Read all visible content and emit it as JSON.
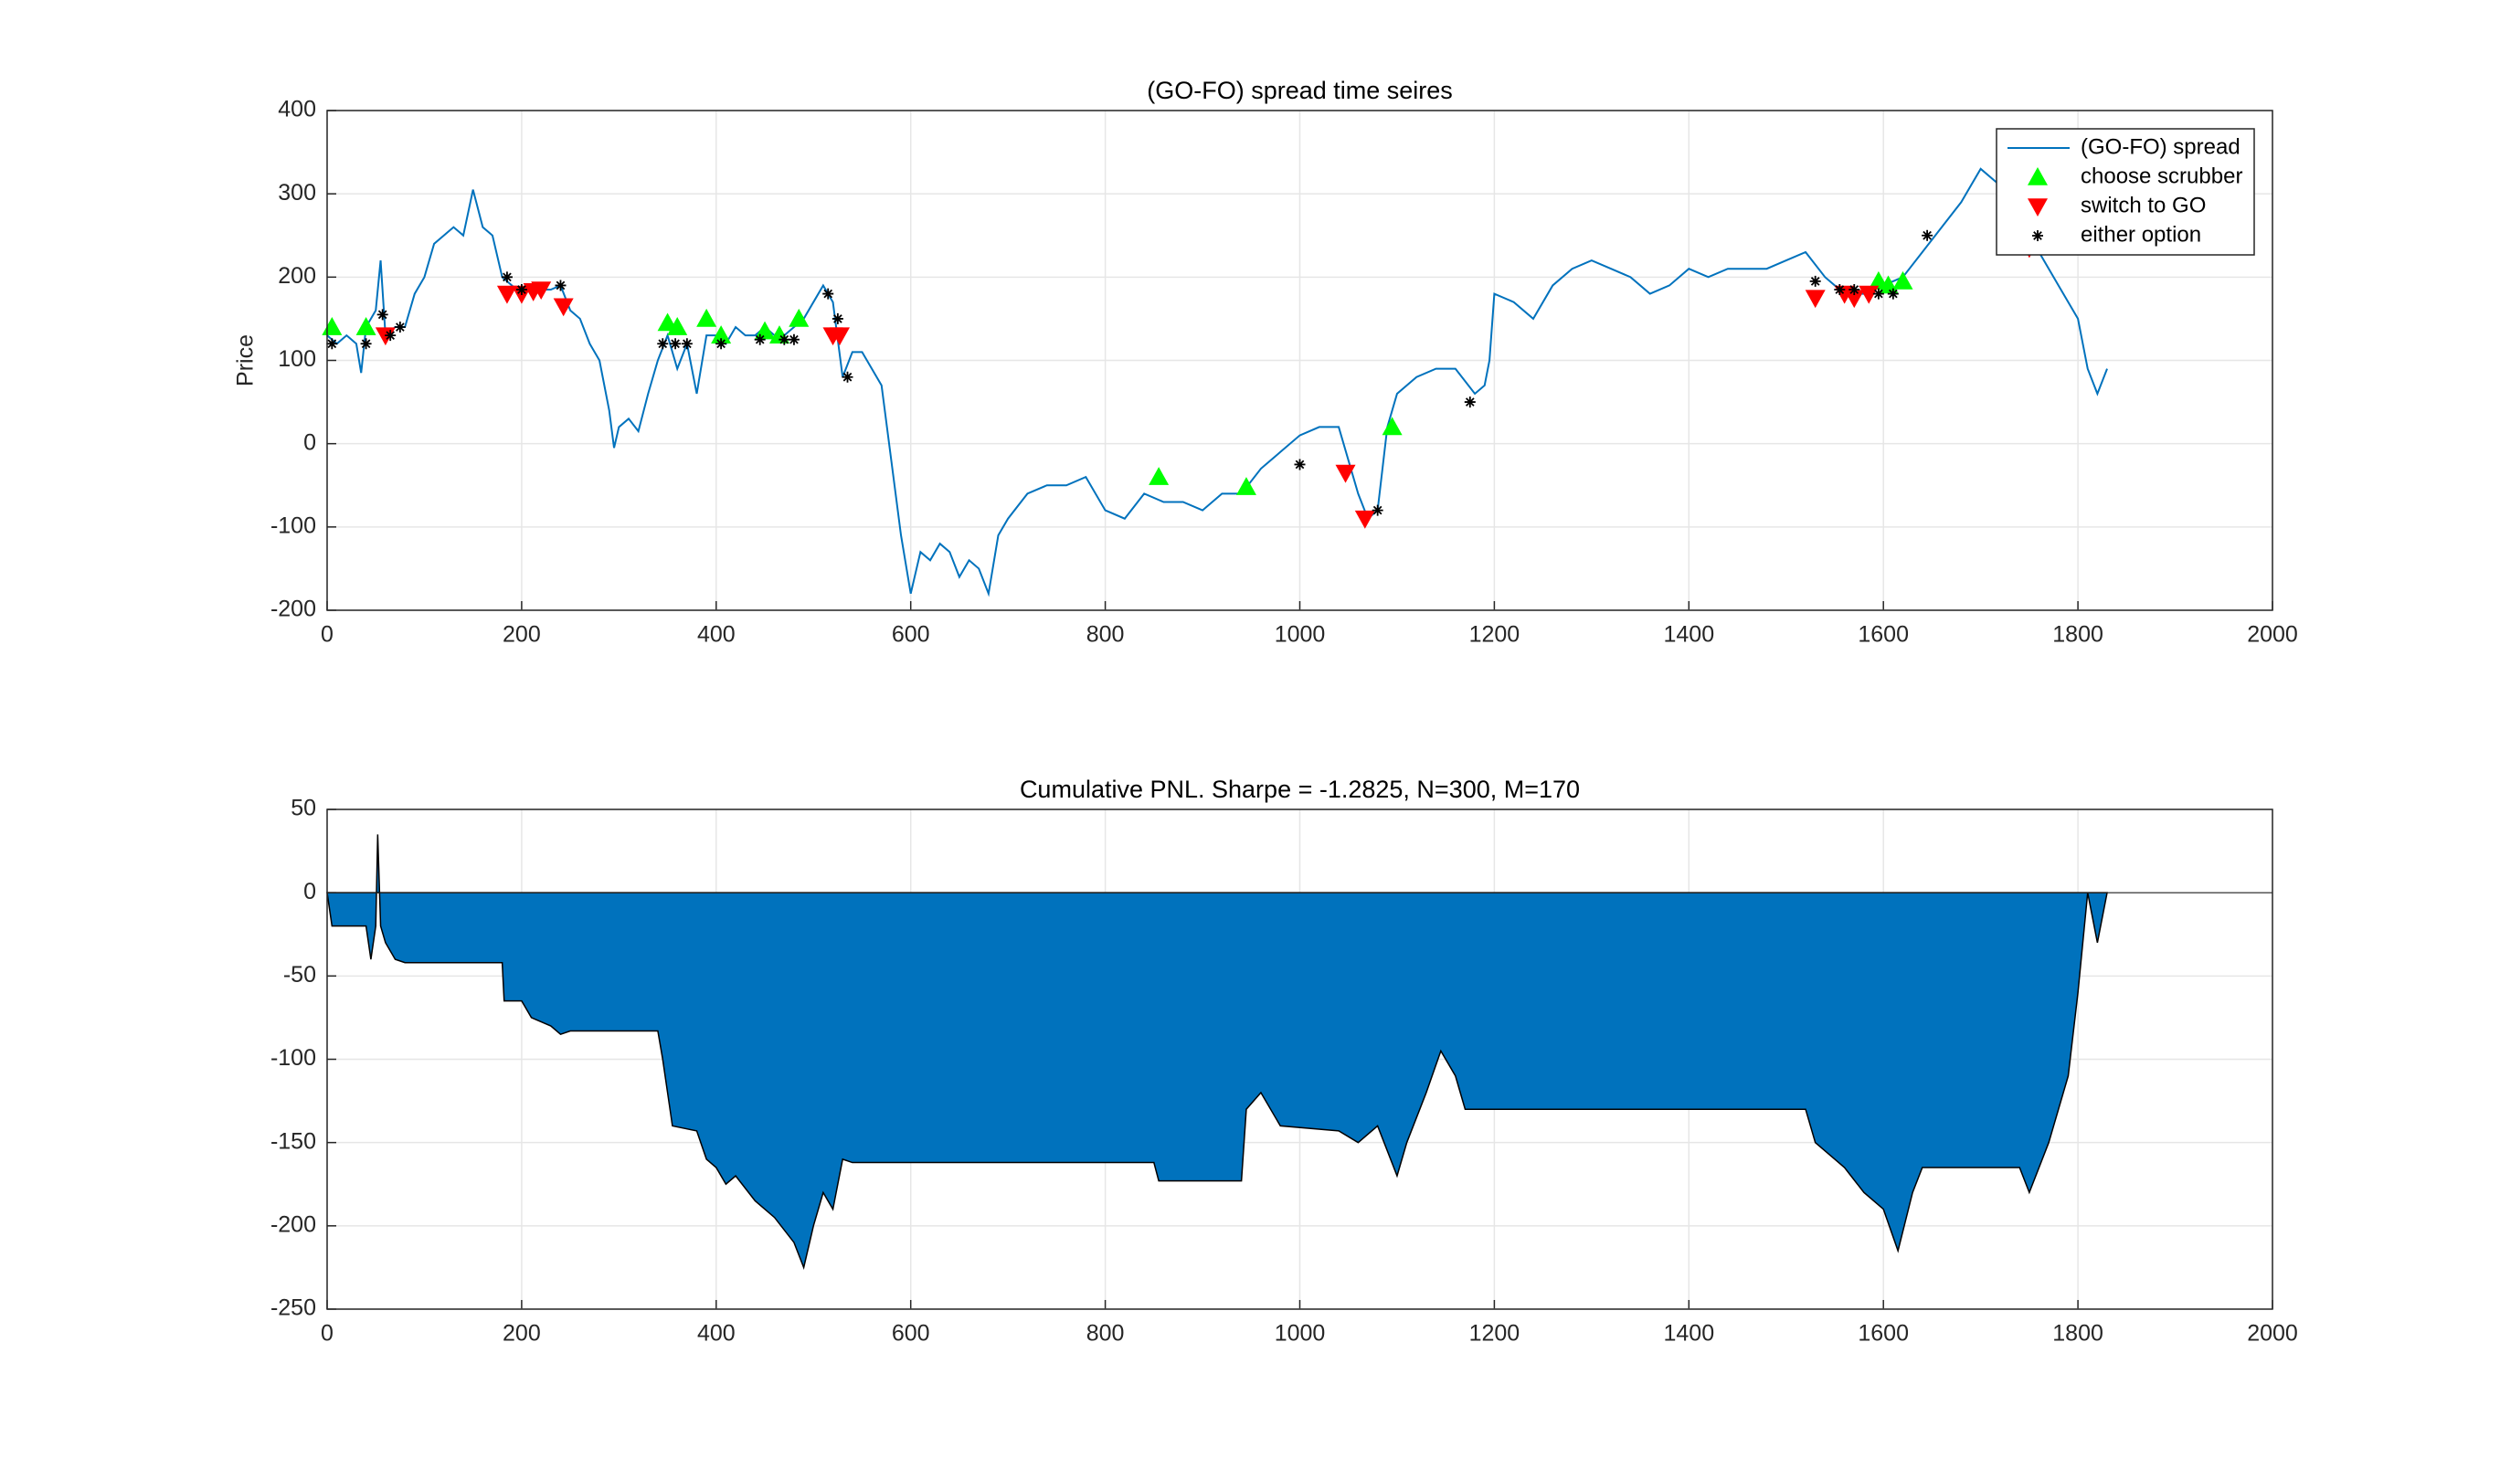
{
  "chart_data": [
    {
      "type": "line",
      "title": "(GO-FO) spread time seires",
      "y_label": "Price",
      "xlim": [
        0,
        2000
      ],
      "xticks": [
        0,
        200,
        400,
        600,
        800,
        1000,
        1200,
        1400,
        1600,
        1800,
        2000
      ],
      "ylim": [
        -200,
        400
      ],
      "yticks": [
        -200,
        -100,
        0,
        100,
        200,
        300,
        400
      ],
      "grid": true,
      "legend": "northeast",
      "series": [
        {
          "name": "(GO-FO) spread",
          "color": "#0072BD",
          "marker": "line",
          "x": [
            0,
            10,
            20,
            30,
            35,
            40,
            50,
            55,
            60,
            70,
            80,
            90,
            100,
            110,
            120,
            130,
            140,
            150,
            160,
            170,
            180,
            190,
            200,
            210,
            220,
            230,
            240,
            250,
            260,
            270,
            280,
            290,
            295,
            300,
            310,
            320,
            330,
            340,
            350,
            360,
            370,
            380,
            390,
            400,
            410,
            420,
            430,
            440,
            450,
            460,
            470,
            480,
            490,
            500,
            510,
            520,
            530,
            540,
            550,
            560,
            570,
            580,
            590,
            600,
            610,
            620,
            630,
            640,
            650,
            660,
            670,
            680,
            690,
            700,
            720,
            740,
            760,
            780,
            800,
            820,
            840,
            860,
            880,
            900,
            920,
            940,
            960,
            980,
            1000,
            1020,
            1040,
            1060,
            1070,
            1080,
            1090,
            1100,
            1120,
            1140,
            1160,
            1180,
            1190,
            1195,
            1200,
            1220,
            1240,
            1260,
            1280,
            1300,
            1320,
            1340,
            1360,
            1380,
            1400,
            1420,
            1440,
            1460,
            1480,
            1500,
            1520,
            1540,
            1560,
            1580,
            1600,
            1620,
            1640,
            1660,
            1680,
            1700,
            1720,
            1740,
            1760,
            1780,
            1800,
            1810,
            1820,
            1830
          ],
          "values": [
            130,
            120,
            130,
            120,
            85,
            140,
            160,
            220,
            130,
            140,
            140,
            180,
            200,
            240,
            250,
            260,
            250,
            305,
            260,
            250,
            200,
            190,
            180,
            190,
            185,
            185,
            190,
            160,
            150,
            120,
            100,
            40,
            -5,
            20,
            30,
            15,
            60,
            100,
            130,
            90,
            120,
            60,
            130,
            130,
            120,
            140,
            130,
            130,
            140,
            130,
            130,
            140,
            150,
            170,
            190,
            170,
            80,
            110,
            110,
            90,
            70,
            -20,
            -110,
            -180,
            -130,
            -140,
            -120,
            -130,
            -160,
            -140,
            -150,
            -180,
            -110,
            -90,
            -60,
            -50,
            -50,
            -40,
            -80,
            -90,
            -60,
            -70,
            -70,
            -80,
            -60,
            -60,
            -30,
            -10,
            10,
            20,
            20,
            -60,
            -90,
            -80,
            20,
            60,
            80,
            90,
            90,
            60,
            70,
            100,
            180,
            170,
            150,
            190,
            210,
            220,
            210,
            200,
            180,
            190,
            210,
            200,
            210,
            210,
            210,
            220,
            230,
            200,
            180,
            180,
            190,
            200,
            230,
            260,
            290,
            330,
            310,
            260,
            230,
            190,
            150,
            90,
            60,
            90
          ]
        },
        {
          "name": "choose scrubber",
          "color": "#00FF00",
          "marker": "^",
          "x": [
            5,
            40,
            350,
            360,
            390,
            405,
            450,
            465,
            485,
            855,
            945,
            1095,
            1595,
            1605,
            1620
          ],
          "values": [
            140,
            140,
            145,
            140,
            150,
            130,
            135,
            130,
            150,
            -40,
            -52,
            20,
            195,
            190,
            195
          ]
        },
        {
          "name": "switch to GO",
          "color": "#FF0000",
          "marker": "v",
          "x": [
            60,
            185,
            200,
            212,
            220,
            243,
            520,
            527,
            1047,
            1067,
            1530,
            1560,
            1570,
            1585,
            1750
          ],
          "values": [
            130,
            180,
            180,
            183,
            185,
            165,
            130,
            130,
            -35,
            -90,
            175,
            180,
            175,
            180,
            235
          ]
        },
        {
          "name": "either option",
          "color": "#000000",
          "marker": "*",
          "x": [
            5,
            40,
            57,
            65,
            75,
            185,
            200,
            240,
            345,
            358,
            370,
            405,
            445,
            470,
            480,
            515,
            525,
            535,
            1000,
            1080,
            1175,
            1530,
            1555,
            1570,
            1595,
            1610,
            1645
          ],
          "values": [
            120,
            120,
            155,
            130,
            140,
            200,
            185,
            190,
            120,
            120,
            120,
            120,
            125,
            125,
            125,
            180,
            150,
            80,
            -25,
            -80,
            50,
            195,
            185,
            185,
            180,
            180,
            250
          ]
        }
      ]
    },
    {
      "type": "area",
      "title": "Cumulative PNL. Sharpe = -1.2825, N=300, M=170",
      "xlim": [
        0,
        2000
      ],
      "xticks": [
        0,
        200,
        400,
        600,
        800,
        1000,
        1200,
        1400,
        1600,
        1800,
        2000
      ],
      "ylim": [
        -250,
        50
      ],
      "yticks": [
        -250,
        -200,
        -150,
        -100,
        -50,
        0,
        50
      ],
      "grid": true,
      "color": "#0072BD",
      "x": [
        0,
        5,
        40,
        45,
        50,
        52,
        55,
        60,
        70,
        80,
        180,
        182,
        200,
        210,
        230,
        240,
        250,
        340,
        345,
        355,
        380,
        390,
        400,
        410,
        420,
        440,
        460,
        480,
        490,
        500,
        510,
        520,
        530,
        540,
        850,
        855,
        940,
        945,
        960,
        980,
        1040,
        1060,
        1080,
        1100,
        1110,
        1130,
        1145,
        1160,
        1170,
        1520,
        1530,
        1560,
        1580,
        1600,
        1615,
        1630,
        1640,
        1740,
        1750,
        1770,
        1790,
        1800,
        1810,
        1820,
        1830
      ],
      "values": [
        0,
        -20,
        -20,
        -40,
        -20,
        35,
        -20,
        -30,
        -40,
        -42,
        -42,
        -65,
        -65,
        -75,
        -80,
        -85,
        -83,
        -83,
        -100,
        -140,
        -143,
        -160,
        -165,
        -175,
        -170,
        -185,
        -195,
        -210,
        -225,
        -200,
        -180,
        -190,
        -160,
        -162,
        -162,
        -173,
        -173,
        -130,
        -120,
        -140,
        -143,
        -150,
        -140,
        -170,
        -150,
        -120,
        -95,
        -110,
        -130,
        -130,
        -150,
        -165,
        -180,
        -190,
        -215,
        -180,
        -165,
        -165,
        -180,
        -150,
        -110,
        -60,
        0,
        -30,
        0
      ]
    }
  ]
}
